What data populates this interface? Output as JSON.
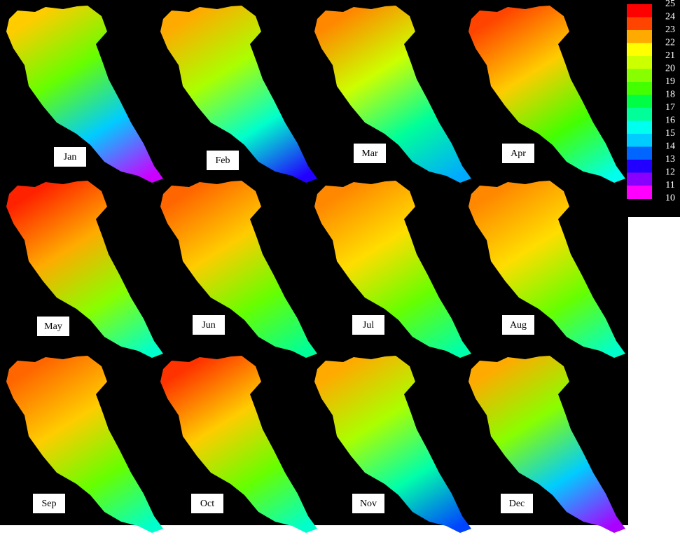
{
  "months": [
    {
      "label": "Jan",
      "colors": [
        "#ffcc00",
        "#66ff00",
        "#00ccff",
        "#cc00ff"
      ]
    },
    {
      "label": "Feb",
      "colors": [
        "#ffaa00",
        "#aaff00",
        "#00ffcc",
        "#2200ff"
      ]
    },
    {
      "label": "Mar",
      "colors": [
        "#ff8800",
        "#ccff00",
        "#00ff99",
        "#00aaff"
      ]
    },
    {
      "label": "Apr",
      "colors": [
        "#ff4400",
        "#ffcc00",
        "#44ff00",
        "#00ffee"
      ]
    },
    {
      "label": "May",
      "colors": [
        "#ff2200",
        "#ffaa00",
        "#88ff00",
        "#00ffcc"
      ]
    },
    {
      "label": "Jun",
      "colors": [
        "#ff6600",
        "#ffcc00",
        "#66ff00",
        "#00ff99"
      ]
    },
    {
      "label": "Jul",
      "colors": [
        "#ff8800",
        "#ffdd00",
        "#66ff00",
        "#00ffaa"
      ]
    },
    {
      "label": "Aug",
      "colors": [
        "#ff8800",
        "#ffdd00",
        "#66ff00",
        "#00ffcc"
      ]
    },
    {
      "label": "Sep",
      "colors": [
        "#ff6600",
        "#ffcc00",
        "#66ff00",
        "#00ffcc"
      ]
    },
    {
      "label": "Oct",
      "colors": [
        "#ff3300",
        "#ffcc00",
        "#66ff00",
        "#00ffcc"
      ]
    },
    {
      "label": "Nov",
      "colors": [
        "#ffaa00",
        "#aaff00",
        "#00ffaa",
        "#0044ff"
      ]
    },
    {
      "label": "Dec",
      "colors": [
        "#ffaa00",
        "#88ff00",
        "#00ccff",
        "#aa00ff"
      ]
    }
  ],
  "legend": {
    "ticks": [
      25,
      24,
      23,
      22,
      21,
      20,
      19,
      18,
      17,
      16,
      15,
      14,
      13,
      12,
      11,
      10
    ],
    "colors": [
      "#ff0000",
      "#ff4400",
      "#ffaa00",
      "#ffff00",
      "#ccff00",
      "#88ff00",
      "#44ff00",
      "#00ff44",
      "#00ff99",
      "#00ffee",
      "#00ccff",
      "#0066ff",
      "#2200ff",
      "#8800ff",
      "#ff00ff"
    ]
  }
}
